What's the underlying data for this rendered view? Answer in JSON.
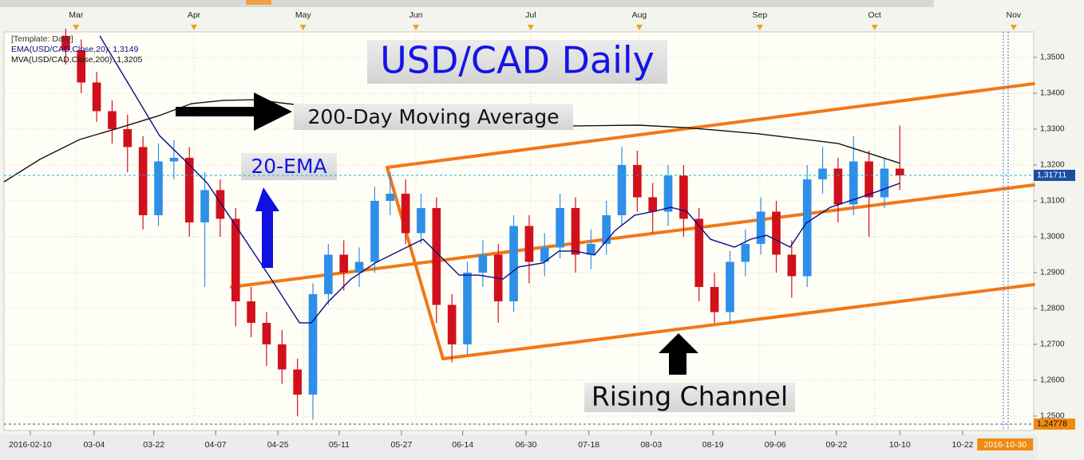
{
  "chart_data": {
    "type": "candlestick",
    "title": "USD/CAD Daily",
    "annotations": {
      "ma200": "200-Day Moving Average",
      "ema20": "20-EMA",
      "channel": "Rising Channel"
    },
    "legend_header": "[Template: Daily]",
    "up_color": "#2f8fe8",
    "down_color": "#d0111b",
    "xlim": [
      0,
      200
    ],
    "ylim": [
      1.2471,
      1.3571
    ],
    "grid": true,
    "yticks": [
      {
        "value": 1.25,
        "label": "1,2500"
      },
      {
        "value": 1.26,
        "label": "1,2600"
      },
      {
        "value": 1.27,
        "label": "1,2700"
      },
      {
        "value": 1.28,
        "label": "1,2800"
      },
      {
        "value": 1.29,
        "label": "1,2900"
      },
      {
        "value": 1.3,
        "label": "1,3000"
      },
      {
        "value": 1.31,
        "label": "1,3100"
      },
      {
        "value": 1.32,
        "label": "1,3200"
      },
      {
        "value": 1.33,
        "label": "1,3300"
      },
      {
        "value": 1.34,
        "label": "1,3400"
      },
      {
        "value": 1.35,
        "label": "1,3500"
      }
    ],
    "xticks": [
      {
        "value": 5.1,
        "label": "2016-02-10"
      },
      {
        "value": 17.5,
        "label": "03-04"
      },
      {
        "value": 29.1,
        "label": "03-22"
      },
      {
        "value": 41.1,
        "label": "04-07"
      },
      {
        "value": 53.2,
        "label": "04-25"
      },
      {
        "value": 65.1,
        "label": "05-11"
      },
      {
        "value": 77.2,
        "label": "05-27"
      },
      {
        "value": 89.1,
        "label": "06-14"
      },
      {
        "value": 101.4,
        "label": "06-30"
      },
      {
        "value": 113.6,
        "label": "07-18"
      },
      {
        "value": 125.7,
        "label": "08-03"
      },
      {
        "value": 137.7,
        "label": "08-19"
      },
      {
        "value": 149.8,
        "label": "09-06"
      },
      {
        "value": 161.7,
        "label": "09-22"
      },
      {
        "value": 174,
        "label": "10-10"
      },
      {
        "value": 186.2,
        "label": "10-22"
      }
    ],
    "cursor_date": {
      "value": 194.3,
      "label": "2016-10-30"
    },
    "month_ticks": [
      {
        "value": 14,
        "label": "Mar"
      },
      {
        "value": 36.9,
        "label": "Apr"
      },
      {
        "value": 58.1,
        "label": "May"
      },
      {
        "value": 80,
        "label": "Jun"
      },
      {
        "value": 102.3,
        "label": "Jul"
      },
      {
        "value": 123.4,
        "label": "Aug"
      },
      {
        "value": 146.8,
        "label": "Sep"
      },
      {
        "value": 169.1,
        "label": "Oct"
      },
      {
        "value": 196.1,
        "label": "Nov"
      }
    ],
    "last_price": {
      "value": 1.31711,
      "label": "1,31711"
    },
    "low_price": {
      "value": 1.24778,
      "label": "1,24778"
    },
    "x": [
      12,
      15,
      18,
      21,
      24,
      27,
      30,
      33,
      36,
      39,
      42,
      45,
      48,
      51,
      54,
      57,
      60,
      63,
      66,
      69,
      72,
      75,
      78,
      81,
      84,
      87,
      90,
      93,
      96,
      99,
      102,
      105,
      108,
      111,
      114,
      117,
      120,
      123,
      126,
      129,
      132,
      135,
      138,
      141,
      144,
      147,
      150,
      153,
      156,
      159,
      162,
      165,
      168,
      171,
      174
    ],
    "open": [
      1.356,
      1.352,
      1.343,
      1.335,
      1.33,
      1.325,
      1.306,
      1.321,
      1.322,
      1.304,
      1.313,
      1.305,
      1.282,
      1.276,
      1.27,
      1.263,
      1.256,
      1.284,
      1.295,
      1.29,
      1.293,
      1.31,
      1.312,
      1.301,
      1.308,
      1.281,
      1.27,
      1.29,
      1.295,
      1.282,
      1.303,
      1.293,
      1.297,
      1.308,
      1.295,
      1.298,
      1.306,
      1.32,
      1.311,
      1.307,
      1.317,
      1.305,
      1.286,
      1.279,
      1.293,
      1.298,
      1.307,
      1.295,
      1.289,
      1.316,
      1.319,
      1.309,
      1.321,
      1.311,
      1.319
    ],
    "high": [
      1.358,
      1.355,
      1.346,
      1.338,
      1.334,
      1.328,
      1.326,
      1.327,
      1.325,
      1.318,
      1.316,
      1.308,
      1.286,
      1.279,
      1.274,
      1.266,
      1.287,
      1.298,
      1.299,
      1.297,
      1.314,
      1.318,
      1.316,
      1.312,
      1.311,
      1.284,
      1.293,
      1.299,
      1.298,
      1.306,
      1.306,
      1.301,
      1.312,
      1.311,
      1.302,
      1.31,
      1.325,
      1.324,
      1.315,
      1.32,
      1.32,
      1.308,
      1.29,
      1.296,
      1.302,
      1.311,
      1.31,
      1.299,
      1.32,
      1.325,
      1.322,
      1.328,
      1.324,
      1.322,
      1.331
    ],
    "low": [
      1.348,
      1.34,
      1.332,
      1.326,
      1.318,
      1.302,
      1.303,
      1.316,
      1.3,
      1.286,
      1.3,
      1.275,
      1.272,
      1.264,
      1.259,
      1.25,
      1.249,
      1.281,
      1.285,
      1.286,
      1.29,
      1.306,
      1.298,
      1.298,
      1.276,
      1.265,
      1.267,
      1.286,
      1.276,
      1.279,
      1.287,
      1.289,
      1.294,
      1.29,
      1.291,
      1.295,
      1.303,
      1.307,
      1.301,
      1.303,
      1.3,
      1.282,
      1.276,
      1.276,
      1.289,
      1.295,
      1.29,
      1.283,
      1.286,
      1.312,
      1.304,
      1.306,
      1.3,
      1.308,
      1.313
    ],
    "close": [
      1.352,
      1.343,
      1.335,
      1.33,
      1.325,
      1.306,
      1.321,
      1.322,
      1.304,
      1.313,
      1.305,
      1.282,
      1.276,
      1.27,
      1.263,
      1.256,
      1.284,
      1.295,
      1.29,
      1.293,
      1.31,
      1.312,
      1.301,
      1.308,
      1.281,
      1.27,
      1.29,
      1.295,
      1.282,
      1.303,
      1.293,
      1.297,
      1.308,
      1.295,
      1.298,
      1.306,
      1.32,
      1.311,
      1.307,
      1.317,
      1.305,
      1.286,
      1.279,
      1.293,
      1.298,
      1.307,
      1.295,
      1.289,
      1.316,
      1.319,
      1.309,
      1.321,
      1.311,
      1.319,
      1.3171
    ],
    "series": [
      {
        "name": "EMA(USD/CAD,Close,20): 1,3149",
        "color": "#0a0a8c",
        "x": [
          18.6,
          30.2,
          34.9,
          39.5,
          45.7,
          51.9,
          57.4,
          59.7,
          62.8,
          67.4,
          72.1,
          76.7,
          81.4,
          84.5,
          88.4,
          92.2,
          96.9,
          100,
          104.7,
          107.8,
          110.9,
          114.7,
          118.6,
          122.5,
          126.4,
          129.5,
          132.6,
          137.2,
          141.9,
          145,
          148.1,
          152.7,
          155.8,
          160.5,
          165.1,
          169.8,
          174
        ],
        "values": [
          1.356,
          1.3282,
          1.3216,
          1.3149,
          1.3016,
          1.2882,
          1.276,
          1.276,
          1.2816,
          1.2882,
          1.2927,
          1.296,
          1.2993,
          1.2949,
          1.2893,
          1.2893,
          1.2882,
          1.2916,
          1.2927,
          1.296,
          1.296,
          1.2949,
          1.3016,
          1.306,
          1.3071,
          1.3082,
          1.3071,
          1.2993,
          1.2971,
          1.2993,
          1.3004,
          1.2971,
          1.3038,
          1.3082,
          1.3104,
          1.3127,
          1.3149
        ]
      },
      {
        "name": "MVA(USD/CAD,Close,200): 1,3205",
        "color": "#111111",
        "x": [
          0,
          7,
          14.7,
          22.5,
          30.2,
          36.4,
          42.6,
          48.8,
          55,
          76.7,
          100,
          110.9,
          123.3,
          132.6,
          146.5,
          162,
          174
        ],
        "values": [
          1.3153,
          1.3216,
          1.3271,
          1.3304,
          1.3338,
          1.3371,
          1.338,
          1.3382,
          1.3371,
          1.3338,
          1.3316,
          1.3309,
          1.3311,
          1.3304,
          1.3287,
          1.326,
          1.3205
        ]
      }
    ]
  }
}
